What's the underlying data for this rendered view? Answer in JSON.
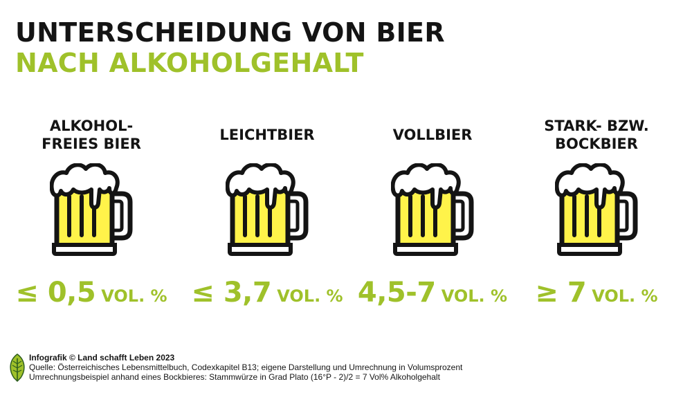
{
  "title": {
    "line1": "UNTERSCHEIDUNG VON BIER",
    "line2": "NACH ALKOHOLGEHALT"
  },
  "colors": {
    "accent": "#9fc12a",
    "text": "#141414",
    "beer_fill": "#fff34a",
    "foam": "#ffffff",
    "outline": "#141414"
  },
  "categories": [
    {
      "label_lines": [
        "ALKOHOL-",
        "FREIES BIER"
      ],
      "value": "≤ 0,5",
      "unit": "VOL. %",
      "icon": "beer-mug-icon"
    },
    {
      "label_lines": [
        "LEICHTBIER"
      ],
      "value": "≤ 3,7",
      "unit": "VOL. %",
      "icon": "beer-mug-icon"
    },
    {
      "label_lines": [
        "VOLLBIER"
      ],
      "value": "4,5-7",
      "unit": "VOL. %",
      "icon": "beer-mug-icon"
    },
    {
      "label_lines": [
        "STARK- BZW.",
        "BOCKBIER"
      ],
      "value": "≥ 7",
      "unit": "VOL. %",
      "icon": "beer-mug-icon"
    }
  ],
  "footer": {
    "credit": "Infografik © Land schafft Leben 2023",
    "source": "Quelle: Österreichisches Lebensmittelbuch, Codexkapitel B13; eigene Darstellung und Umrechnung in Volumsprozent",
    "example": "Umrechnungsbeispiel anhand eines Bockbieres: Stammwürze in Grad Plato (16°P - 2)/2 = 7 Vol% Alkoholgehalt",
    "logo_icon": "leaf-logo-icon"
  }
}
